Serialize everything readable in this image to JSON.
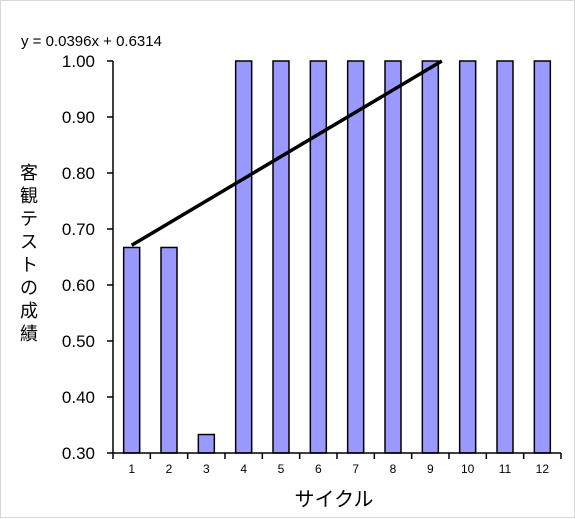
{
  "chart_data": {
    "type": "bar",
    "categories": [
      "1",
      "2",
      "3",
      "4",
      "5",
      "6",
      "7",
      "8",
      "9",
      "10",
      "11",
      "12"
    ],
    "values": [
      0.667,
      0.667,
      0.333,
      1.0,
      1.0,
      1.0,
      1.0,
      1.0,
      1.0,
      1.0,
      1.0,
      1.0
    ],
    "ylim": [
      0.3,
      1.0
    ],
    "yticks": [
      "1.00",
      "0.90",
      "0.80",
      "0.70",
      "0.60",
      "0.50",
      "0.40",
      "0.30"
    ],
    "xlabel": "サイクル",
    "ylabel": "客観テストの成績",
    "trendline": {
      "equation": "y = 0.0396x + 0.6314",
      "slope": 0.0396,
      "intercept": 0.6314
    },
    "bar_color": "#9999ff",
    "bar_stroke": "#000000",
    "trend_color": "#000000",
    "grid": false
  }
}
